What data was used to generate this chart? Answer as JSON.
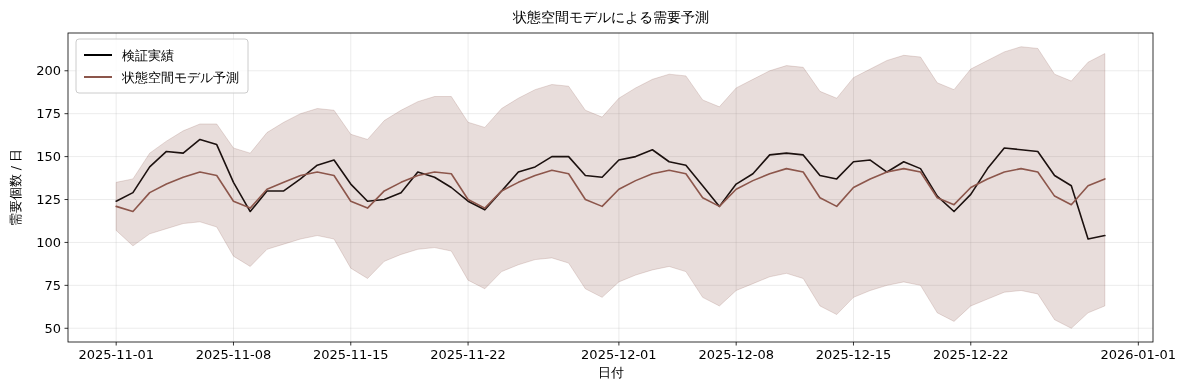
{
  "chart_data": {
    "type": "line",
    "title": "状態空間モデルによる需要予測",
    "xlabel": "日付",
    "ylabel": "需要個数 / 日",
    "x": [
      "2025-11-01",
      "2025-11-02",
      "2025-11-03",
      "2025-11-04",
      "2025-11-05",
      "2025-11-06",
      "2025-11-07",
      "2025-11-08",
      "2025-11-09",
      "2025-11-10",
      "2025-11-11",
      "2025-11-12",
      "2025-11-13",
      "2025-11-14",
      "2025-11-15",
      "2025-11-16",
      "2025-11-17",
      "2025-11-18",
      "2025-11-19",
      "2025-11-20",
      "2025-11-21",
      "2025-11-22",
      "2025-11-23",
      "2025-11-24",
      "2025-11-25",
      "2025-11-26",
      "2025-11-27",
      "2025-11-28",
      "2025-11-29",
      "2025-11-30",
      "2025-12-01",
      "2025-12-02",
      "2025-12-03",
      "2025-12-04",
      "2025-12-05",
      "2025-12-06",
      "2025-12-07",
      "2025-12-08",
      "2025-12-09",
      "2025-12-10",
      "2025-12-11",
      "2025-12-12",
      "2025-12-13",
      "2025-12-14",
      "2025-12-15",
      "2025-12-16",
      "2025-12-17",
      "2025-12-18",
      "2025-12-19",
      "2025-12-20",
      "2025-12-21",
      "2025-12-22",
      "2025-12-23",
      "2025-12-24",
      "2025-12-25",
      "2025-12-26",
      "2025-12-27",
      "2025-12-28",
      "2025-12-29",
      "2025-12-30"
    ],
    "series": [
      {
        "name": "検証実績",
        "color": "#000000",
        "values": [
          124,
          129,
          144,
          153,
          152,
          160,
          157,
          135,
          118,
          130,
          130,
          137,
          145,
          148,
          134,
          124,
          125,
          129,
          141,
          138,
          132,
          124,
          119,
          130,
          141,
          144,
          150,
          150,
          139,
          138,
          148,
          150,
          154,
          147,
          145,
          133,
          121,
          134,
          140,
          151,
          152,
          151,
          139,
          137,
          147,
          148,
          141,
          147,
          143,
          127,
          118,
          128,
          143,
          155,
          154,
          153,
          139,
          133,
          102,
          104
        ]
      },
      {
        "name": "状態空間モデル予測",
        "color": "#8c564b",
        "values": [
          121,
          118,
          129,
          134,
          138,
          141,
          139,
          124,
          120,
          131,
          135,
          139,
          141,
          139,
          124,
          120,
          130,
          135,
          139,
          141,
          140,
          125,
          120,
          130,
          135,
          139,
          142,
          140,
          125,
          121,
          131,
          136,
          140,
          142,
          140,
          126,
          121,
          131,
          136,
          140,
          143,
          141,
          126,
          121,
          132,
          137,
          141,
          143,
          141,
          126,
          122,
          132,
          137,
          141,
          143,
          141,
          127,
          122,
          133,
          137
        ],
        "lower": [
          107,
          98,
          105,
          108,
          111,
          112,
          109,
          92,
          86,
          96,
          99,
          102,
          104,
          102,
          85,
          79,
          89,
          93,
          96,
          97,
          95,
          78,
          73,
          83,
          87,
          90,
          91,
          88,
          73,
          68,
          77,
          81,
          84,
          86,
          83,
          68,
          63,
          72,
          76,
          80,
          82,
          79,
          63,
          58,
          68,
          72,
          75,
          77,
          75,
          59,
          54,
          63,
          67,
          71,
          72,
          70,
          55,
          50,
          59,
          63
        ],
        "upper": [
          135,
          137,
          152,
          159,
          165,
          169,
          169,
          155,
          152,
          164,
          170,
          175,
          178,
          177,
          163,
          160,
          171,
          177,
          182,
          185,
          185,
          170,
          167,
          178,
          184,
          189,
          192,
          191,
          177,
          173,
          184,
          190,
          195,
          198,
          197,
          183,
          179,
          190,
          195,
          200,
          203,
          202,
          188,
          184,
          196,
          201,
          206,
          209,
          208,
          193,
          189,
          201,
          206,
          211,
          214,
          213,
          198,
          194,
          205,
          210
        ]
      }
    ],
    "xlim": [
      "2025-10-29T03:00",
      "2026-01-01T21:00"
    ],
    "xticks": [
      {
        "value": "2025-11-01",
        "label": "2025-11-01"
      },
      {
        "value": "2025-11-08",
        "label": "2025-11-08"
      },
      {
        "value": "2025-11-15",
        "label": "2025-11-15"
      },
      {
        "value": "2025-11-22",
        "label": "2025-11-22"
      },
      {
        "value": "2025-12-01",
        "label": "2025-12-01"
      },
      {
        "value": "2025-12-08",
        "label": "2025-12-08"
      },
      {
        "value": "2025-12-15",
        "label": "2025-12-15"
      },
      {
        "value": "2025-12-22",
        "label": "2025-12-22"
      },
      {
        "value": "2026-01-01",
        "label": "2026-01-01"
      }
    ],
    "ylim": [
      42,
      222
    ],
    "yticks": [
      50,
      75,
      100,
      125,
      150,
      175,
      200
    ],
    "grid": true,
    "legend": "top left",
    "marker": "none",
    "line_style": "solid"
  }
}
